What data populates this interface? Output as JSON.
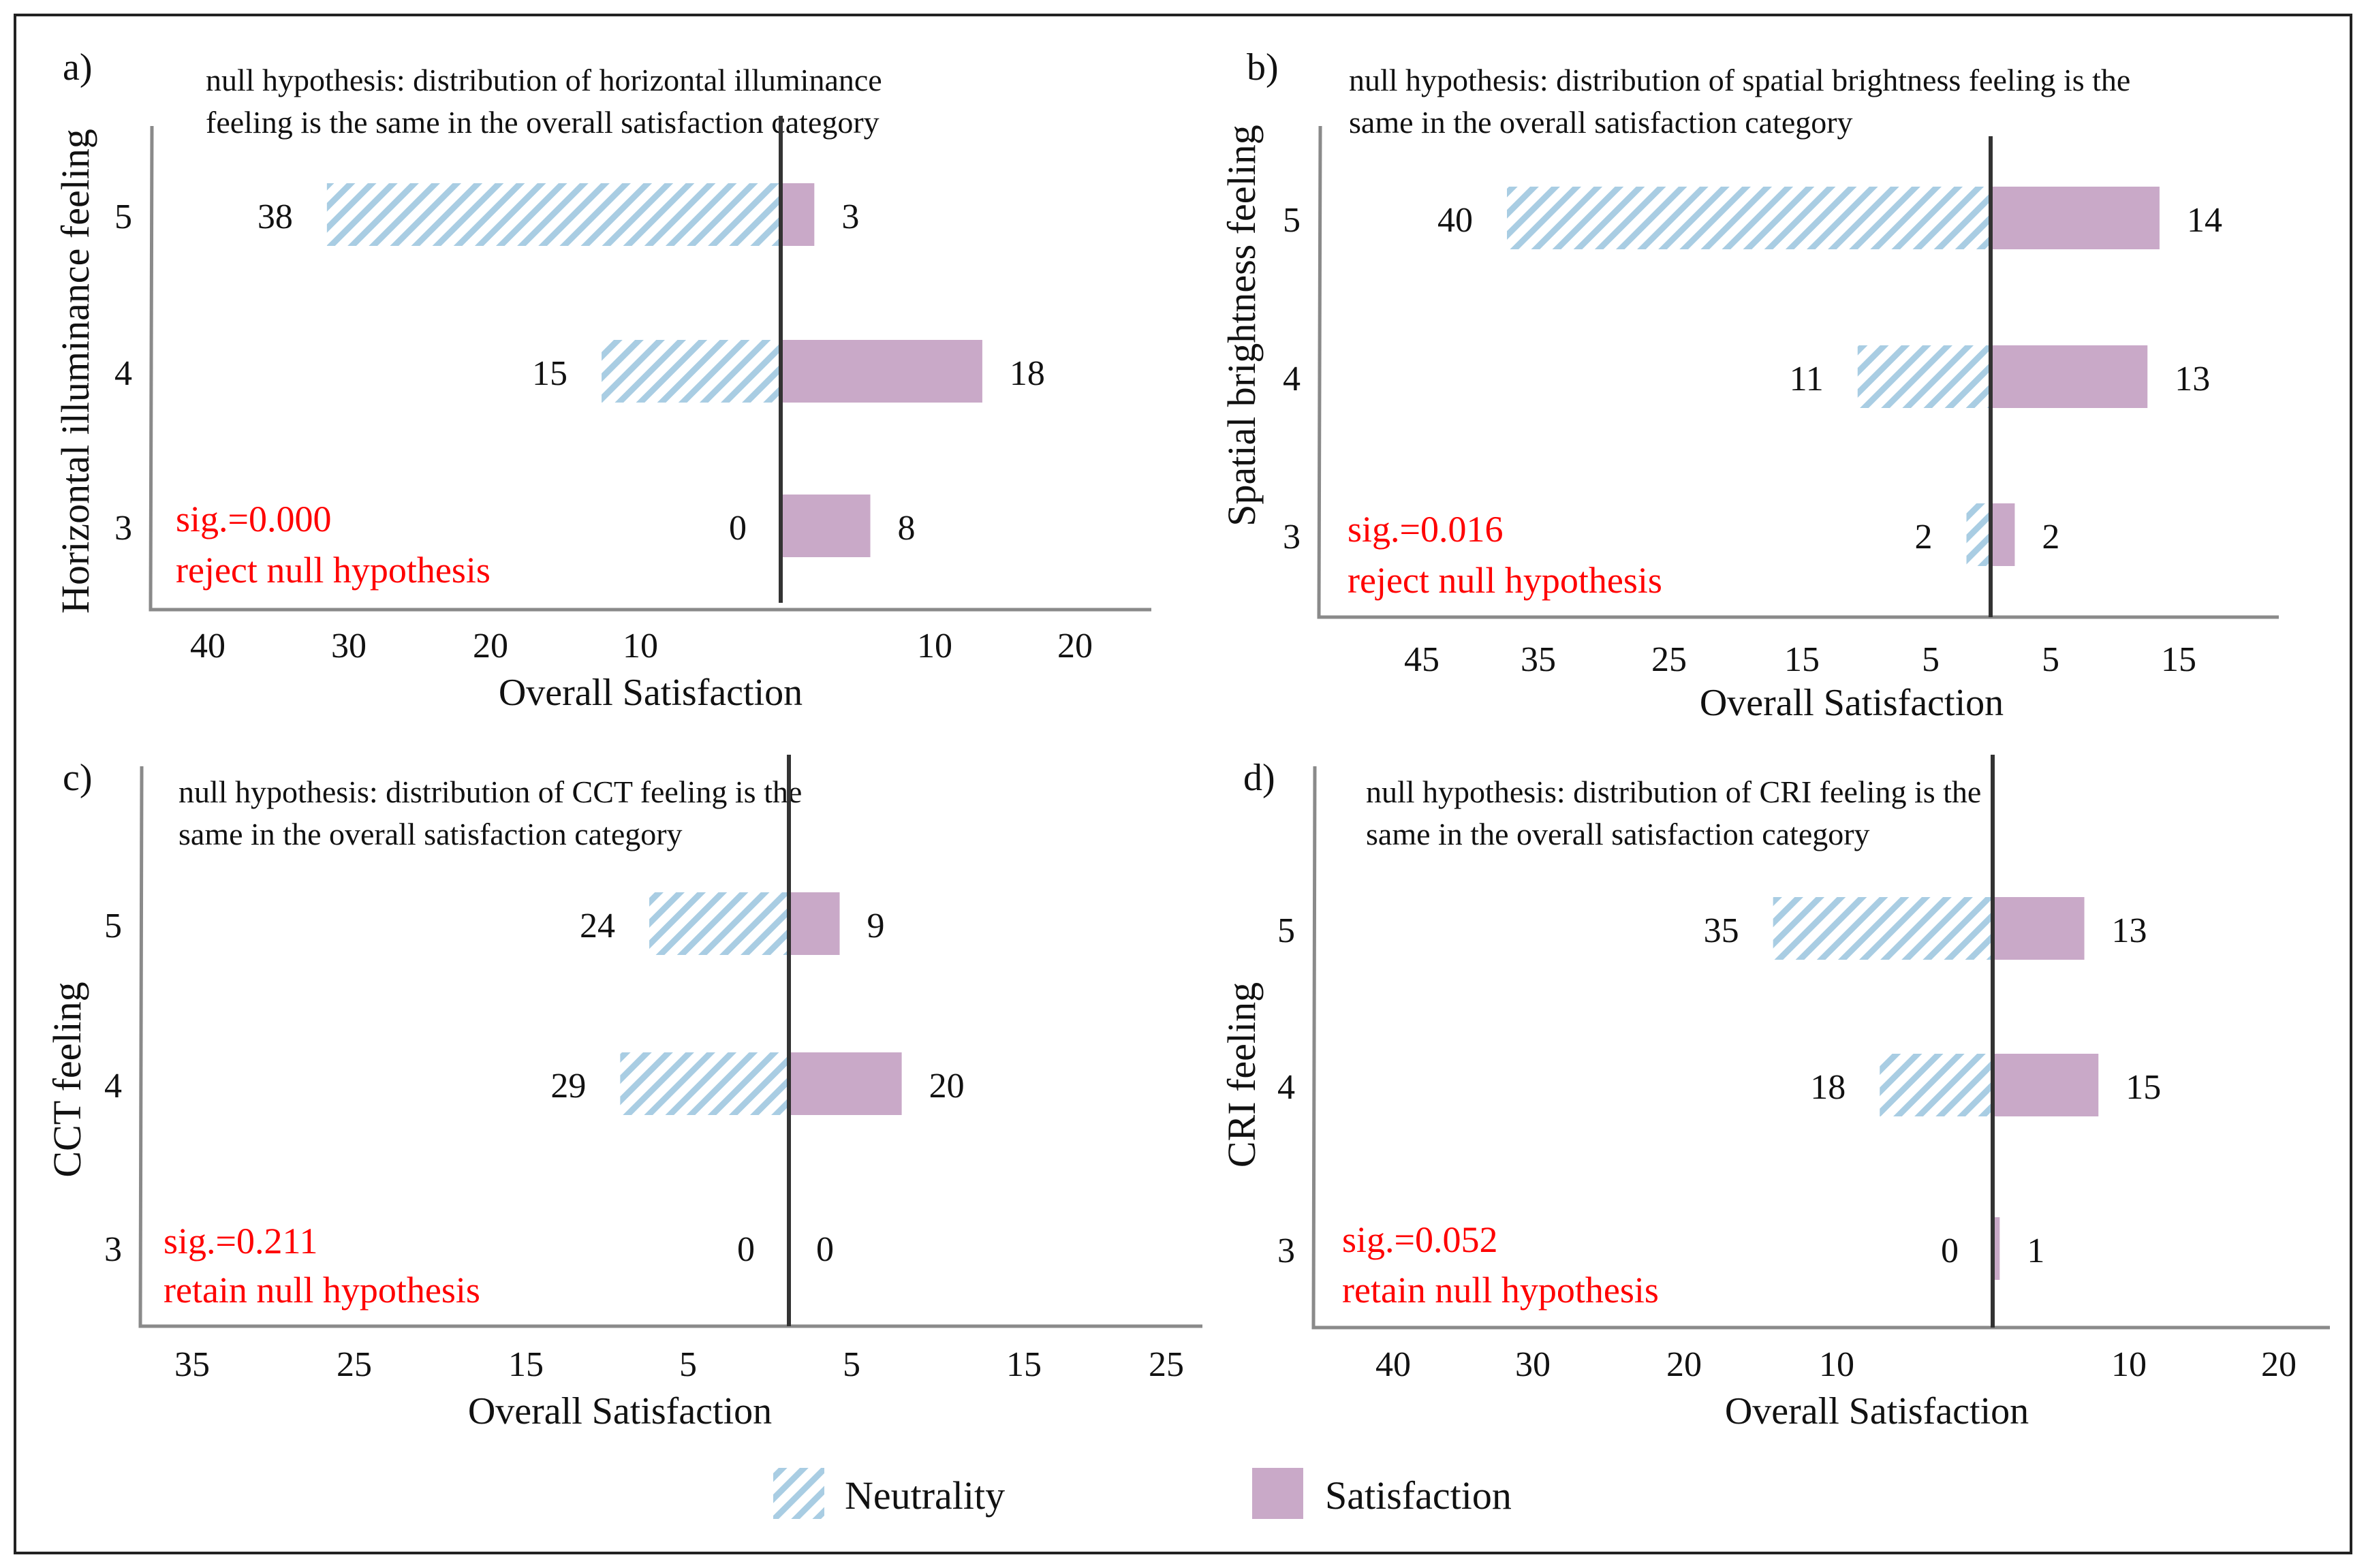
{
  "colors": {
    "neutrality": "#a9cde3",
    "satisfaction": "#c9a9c8",
    "annotation": "#ff0000",
    "axis": "#8a8a8a",
    "zero_line": "#333333",
    "text": "#111111"
  },
  "legend": {
    "neutrality_label": "Neutrality",
    "satisfaction_label": "Satisfaction"
  },
  "chart_data": [
    {
      "type": "bar",
      "orientation": "horizontal-diverging",
      "panel_label": "a)",
      "title_line1": "null hypothesis: distribution of horizontal illuminance",
      "title_line2": "feeling is the same in the overall satisfaction category",
      "ylabel": "Horizontal illuminance feeling",
      "xlabel": "Overall Satisfaction",
      "categories": [
        "5",
        "4",
        "3"
      ],
      "series": [
        {
          "name": "Neutrality",
          "values": [
            38,
            15,
            0
          ],
          "labels": [
            "38",
            "15",
            "0"
          ]
        },
        {
          "name": "Satisfaction",
          "values": [
            3,
            18,
            8
          ],
          "labels": [
            "3",
            "18",
            "8"
          ]
        }
      ],
      "left_ticks": [
        "40",
        "30",
        "20",
        "10"
      ],
      "right_ticks": [
        "10",
        "20"
      ],
      "sig_text": "sig.=0.000",
      "decision_text": "reject null hypothesis"
    },
    {
      "type": "bar",
      "orientation": "horizontal-diverging",
      "panel_label": "b)",
      "title_line1": "null hypothesis: distribution of spatial brightness feeling is the",
      "title_line2": "same in the overall satisfaction category",
      "ylabel": "Spatial brightness feeling",
      "xlabel": "Overall Satisfaction",
      "categories": [
        "5",
        "4",
        "3"
      ],
      "series": [
        {
          "name": "Neutrality",
          "values": [
            40,
            11,
            2
          ],
          "labels": [
            "40",
            "11",
            "2"
          ]
        },
        {
          "name": "Satisfaction",
          "values": [
            14,
            13,
            2
          ],
          "labels": [
            "14",
            "13",
            "2"
          ]
        }
      ],
      "left_ticks": [
        "45",
        "35",
        "25",
        "15",
        "5"
      ],
      "right_ticks": [
        "5",
        "15"
      ],
      "sig_text": "sig.=0.016",
      "decision_text": "reject null hypothesis"
    },
    {
      "type": "bar",
      "orientation": "horizontal-diverging",
      "panel_label": "c)",
      "title_line1": "null hypothesis: distribution of CCT feeling is the",
      "title_line2": "same in the overall satisfaction category",
      "ylabel": "CCT feeling",
      "xlabel": "Overall Satisfaction",
      "categories": [
        "5",
        "4",
        "3"
      ],
      "series": [
        {
          "name": "Neutrality",
          "values": [
            24,
            29,
            0
          ],
          "labels": [
            "24",
            "29",
            "0"
          ]
        },
        {
          "name": "Satisfaction",
          "values": [
            9,
            20,
            0
          ],
          "labels": [
            "9",
            "20",
            "0"
          ]
        }
      ],
      "left_ticks": [
        "35",
        "25",
        "15",
        "5"
      ],
      "right_ticks": [
        "5",
        "15",
        "25"
      ],
      "sig_text": "sig.=0.211",
      "decision_text": "retain null hypothesis"
    },
    {
      "type": "bar",
      "orientation": "horizontal-diverging",
      "panel_label": "d)",
      "title_line1": "null hypothesis: distribution of CRI feeling is the",
      "title_line2": "same in the overall satisfaction category",
      "ylabel": "CRI feeling",
      "xlabel": "Overall Satisfaction",
      "categories": [
        "5",
        "4",
        "3"
      ],
      "series": [
        {
          "name": "Neutrality",
          "values": [
            35,
            18,
            0
          ],
          "labels": [
            "35",
            "18",
            "0"
          ]
        },
        {
          "name": "Satisfaction",
          "values": [
            13,
            15,
            1
          ],
          "labels": [
            "13",
            "15",
            "1"
          ]
        }
      ],
      "left_ticks": [
        "40",
        "30",
        "20",
        "10"
      ],
      "right_ticks": [
        "10",
        "20"
      ],
      "sig_text": "sig.=0.052",
      "decision_text": "retain null hypothesis"
    }
  ]
}
